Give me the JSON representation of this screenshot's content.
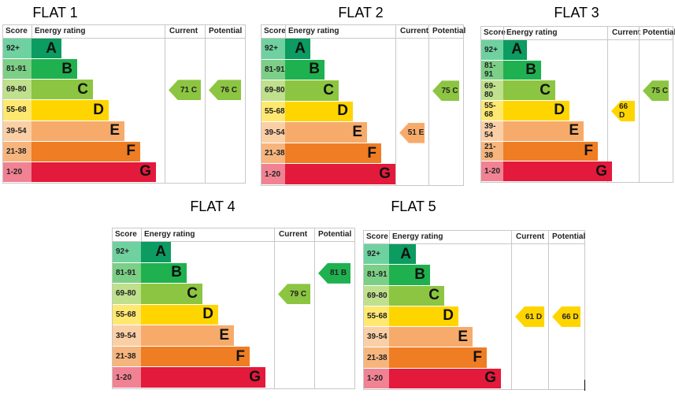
{
  "flats": [
    {
      "title": "FLAT 1",
      "current": {
        "score": "71",
        "band": "C"
      },
      "potential": {
        "score": "76",
        "band": "C"
      }
    },
    {
      "title": "FLAT 2",
      "current": {
        "score": "51",
        "band": "E"
      },
      "potential": {
        "score": "75",
        "band": "C"
      }
    },
    {
      "title": "FLAT 3",
      "current": {
        "score": "66",
        "band": "D"
      },
      "potential": {
        "score": "75",
        "band": "C"
      }
    },
    {
      "title": "FLAT 4",
      "current": {
        "score": "79",
        "band": "C"
      },
      "potential": {
        "score": "81",
        "band": "B"
      }
    },
    {
      "title": "FLAT 5",
      "current": {
        "score": "61",
        "band": "D"
      },
      "potential": {
        "score": "66",
        "band": "D"
      }
    }
  ],
  "headers": {
    "score": "Score",
    "rating": "Energy rating",
    "current": "Current",
    "potential": "Potential"
  },
  "bands": [
    {
      "range": "92+",
      "letter": "A",
      "color": "#0c9b60",
      "score_bg": "#6fd1a0"
    },
    {
      "range": "81-91",
      "letter": "B",
      "color": "#1fb14f",
      "score_bg": "#7ccf86"
    },
    {
      "range": "69-80",
      "letter": "C",
      "color": "#8cc541",
      "score_bg": "#bfe08c"
    },
    {
      "range": "55-68",
      "letter": "D",
      "color": "#ffd500",
      "score_bg": "#ffe870"
    },
    {
      "range": "39-54",
      "letter": "E",
      "color": "#f7ab6b",
      "score_bg": "#fbcfa6"
    },
    {
      "range": "21-38",
      "letter": "F",
      "color": "#ef7d23",
      "score_bg": "#f7b57e"
    },
    {
      "range": "1-20",
      "letter": "G",
      "color": "#e31a3b",
      "score_bg": "#f08293"
    }
  ]
}
